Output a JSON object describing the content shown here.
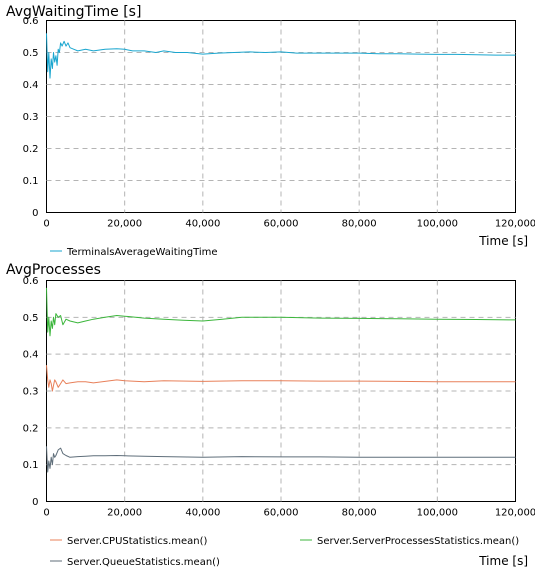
{
  "chart_data": [
    {
      "type": "line",
      "title": "AvgWaitingTime [s]",
      "xlabel": "Time [s]",
      "ylabel": "",
      "xlim": [
        0,
        120000
      ],
      "ylim": [
        0,
        0.6
      ],
      "xticks": [
        "0",
        "20,000",
        "40,000",
        "60,000",
        "80,000",
        "100,000",
        "120,000"
      ],
      "yticks": [
        "0",
        "0.1",
        "0.2",
        "0.3",
        "0.4",
        "0.5",
        "0.6"
      ],
      "grid": true,
      "legend_position": "bottom-left",
      "series": [
        {
          "name": "TerminalsAverageWaitingTime",
          "color": "#1aa6cf",
          "x": [
            0,
            300,
            600,
            900,
            1200,
            1500,
            1800,
            2100,
            2400,
            2700,
            3000,
            3300,
            3600,
            4000,
            4500,
            5000,
            5500,
            6000,
            7000,
            8000,
            10000,
            12000,
            15000,
            18000,
            20000,
            22000,
            25000,
            28000,
            30000,
            33000,
            36000,
            40000,
            44000,
            48000,
            52000,
            56000,
            60000,
            64000,
            68000,
            72000,
            76000,
            80000,
            85000,
            90000,
            95000,
            100000,
            105000,
            110000,
            115000,
            120000
          ],
          "y": [
            0.56,
            0.44,
            0.5,
            0.42,
            0.48,
            0.45,
            0.5,
            0.47,
            0.49,
            0.46,
            0.51,
            0.5,
            0.53,
            0.52,
            0.535,
            0.52,
            0.53,
            0.515,
            0.51,
            0.505,
            0.51,
            0.505,
            0.51,
            0.512,
            0.51,
            0.505,
            0.505,
            0.5,
            0.505,
            0.5,
            0.5,
            0.495,
            0.498,
            0.5,
            0.502,
            0.5,
            0.502,
            0.498,
            0.498,
            0.498,
            0.498,
            0.498,
            0.496,
            0.496,
            0.495,
            0.494,
            0.494,
            0.493,
            0.492,
            0.492
          ]
        }
      ]
    },
    {
      "type": "line",
      "title": "AvgProcesses",
      "xlabel": "Time [s]",
      "ylabel": "",
      "xlim": [
        0,
        120000
      ],
      "ylim": [
        0,
        0.6
      ],
      "xticks": [
        "0",
        "20,000",
        "40,000",
        "60,000",
        "80,000",
        "100,000",
        "120,000"
      ],
      "yticks": [
        "0",
        "0.1",
        "0.2",
        "0.3",
        "0.4",
        "0.5",
        "0.6"
      ],
      "grid": true,
      "legend_position": "bottom",
      "series": [
        {
          "name": "Server.CPUStatistics.mean()",
          "color": "#e8805a",
          "x": [
            0,
            300,
            600,
            900,
            1200,
            1500,
            1800,
            2100,
            2400,
            3000,
            3600,
            4200,
            5000,
            6000,
            8000,
            10000,
            12000,
            15000,
            18000,
            20000,
            25000,
            30000,
            40000,
            50000,
            60000,
            70000,
            80000,
            90000,
            100000,
            110000,
            120000
          ],
          "y": [
            0.37,
            0.33,
            0.31,
            0.33,
            0.32,
            0.3,
            0.315,
            0.33,
            0.325,
            0.31,
            0.32,
            0.33,
            0.32,
            0.322,
            0.325,
            0.325,
            0.322,
            0.326,
            0.33,
            0.328,
            0.325,
            0.328,
            0.326,
            0.328,
            0.328,
            0.327,
            0.327,
            0.326,
            0.325,
            0.325,
            0.325
          ]
        },
        {
          "name": "Server.ServerProcessesStatistics.mean()",
          "color": "#3cb63c",
          "x": [
            0,
            300,
            600,
            900,
            1200,
            1500,
            1800,
            2100,
            2400,
            3000,
            3600,
            4200,
            5000,
            6000,
            8000,
            10000,
            12000,
            15000,
            18000,
            20000,
            25000,
            30000,
            35000,
            40000,
            45000,
            50000,
            55000,
            60000,
            70000,
            80000,
            90000,
            100000,
            110000,
            120000
          ],
          "y": [
            0.58,
            0.46,
            0.5,
            0.45,
            0.49,
            0.47,
            0.5,
            0.48,
            0.51,
            0.5,
            0.505,
            0.48,
            0.495,
            0.49,
            0.485,
            0.49,
            0.495,
            0.5,
            0.505,
            0.503,
            0.498,
            0.495,
            0.492,
            0.49,
            0.495,
            0.5,
            0.5,
            0.5,
            0.498,
            0.497,
            0.496,
            0.495,
            0.494,
            0.493
          ]
        },
        {
          "name": "Server.QueueStatistics.mean()",
          "color": "#5f6e7a",
          "x": [
            0,
            300,
            600,
            900,
            1200,
            1500,
            1800,
            2100,
            2400,
            3000,
            3600,
            4200,
            5000,
            6000,
            8000,
            10000,
            12000,
            15000,
            18000,
            20000,
            25000,
            30000,
            40000,
            50000,
            60000,
            70000,
            80000,
            90000,
            100000,
            110000,
            120000
          ],
          "y": [
            0.15,
            0.08,
            0.11,
            0.09,
            0.12,
            0.1,
            0.13,
            0.12,
            0.125,
            0.14,
            0.145,
            0.13,
            0.125,
            0.12,
            0.122,
            0.123,
            0.124,
            0.124,
            0.125,
            0.124,
            0.123,
            0.122,
            0.12,
            0.122,
            0.121,
            0.121,
            0.12,
            0.12,
            0.12,
            0.12,
            0.12
          ]
        }
      ]
    }
  ]
}
